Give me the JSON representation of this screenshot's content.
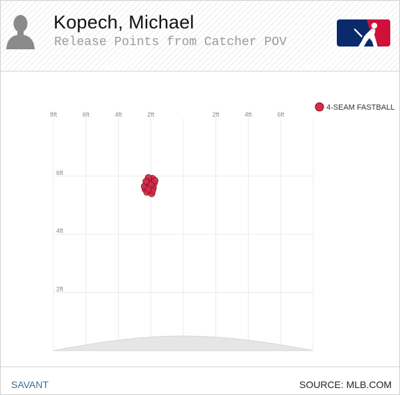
{
  "header": {
    "player_name": "Kopech, Michael",
    "subtitle": "Release Points from Catcher POV"
  },
  "icons": {
    "headshot": "player-silhouette-icon",
    "logo": "mlb-logo-icon"
  },
  "colors": {
    "pitch_fill": "#d22d49",
    "pitch_stroke": "#7a1020",
    "grid": "#ececec",
    "mound": "#e6e6e6"
  },
  "chart_data": {
    "type": "scatter",
    "title": "Release Points from Catcher POV",
    "x_unit": "ft",
    "y_unit": "ft",
    "x_tick_labels": [
      "8ft",
      "6ft",
      "4ft",
      "2ft",
      "2ft",
      "4ft",
      "6ft"
    ],
    "x_tick_values": [
      -8,
      -6,
      -4,
      -2,
      2,
      4,
      6
    ],
    "y_tick_labels": [
      "2ft",
      "4ft",
      "6ft"
    ],
    "y_tick_values": [
      2,
      4,
      6
    ],
    "xlim": [
      -8,
      8
    ],
    "ylim": [
      0,
      8
    ],
    "grid": true,
    "legend_position": "top-right",
    "series": [
      {
        "name": "4-SEAM FASTBALL",
        "color": "#d22d49",
        "points": [
          {
            "x": -2.2,
            "y": 5.85
          },
          {
            "x": -1.9,
            "y": 5.92
          },
          {
            "x": -2.05,
            "y": 5.78
          },
          {
            "x": -2.3,
            "y": 5.7
          },
          {
            "x": -1.8,
            "y": 5.75
          },
          {
            "x": -2.1,
            "y": 5.65
          },
          {
            "x": -2.35,
            "y": 5.55
          },
          {
            "x": -1.85,
            "y": 5.6
          },
          {
            "x": -2.0,
            "y": 5.5
          },
          {
            "x": -2.25,
            "y": 5.45
          },
          {
            "x": -1.95,
            "y": 5.4
          },
          {
            "x": -2.4,
            "y": 5.65
          },
          {
            "x": -1.75,
            "y": 5.85
          },
          {
            "x": -2.15,
            "y": 5.95
          },
          {
            "x": -2.0,
            "y": 5.7
          },
          {
            "x": -2.3,
            "y": 5.82
          },
          {
            "x": -1.9,
            "y": 5.5
          },
          {
            "x": -2.15,
            "y": 5.55
          }
        ]
      }
    ]
  },
  "footer": {
    "left": "SAVANT",
    "right": "SOURCE: MLB.COM"
  }
}
